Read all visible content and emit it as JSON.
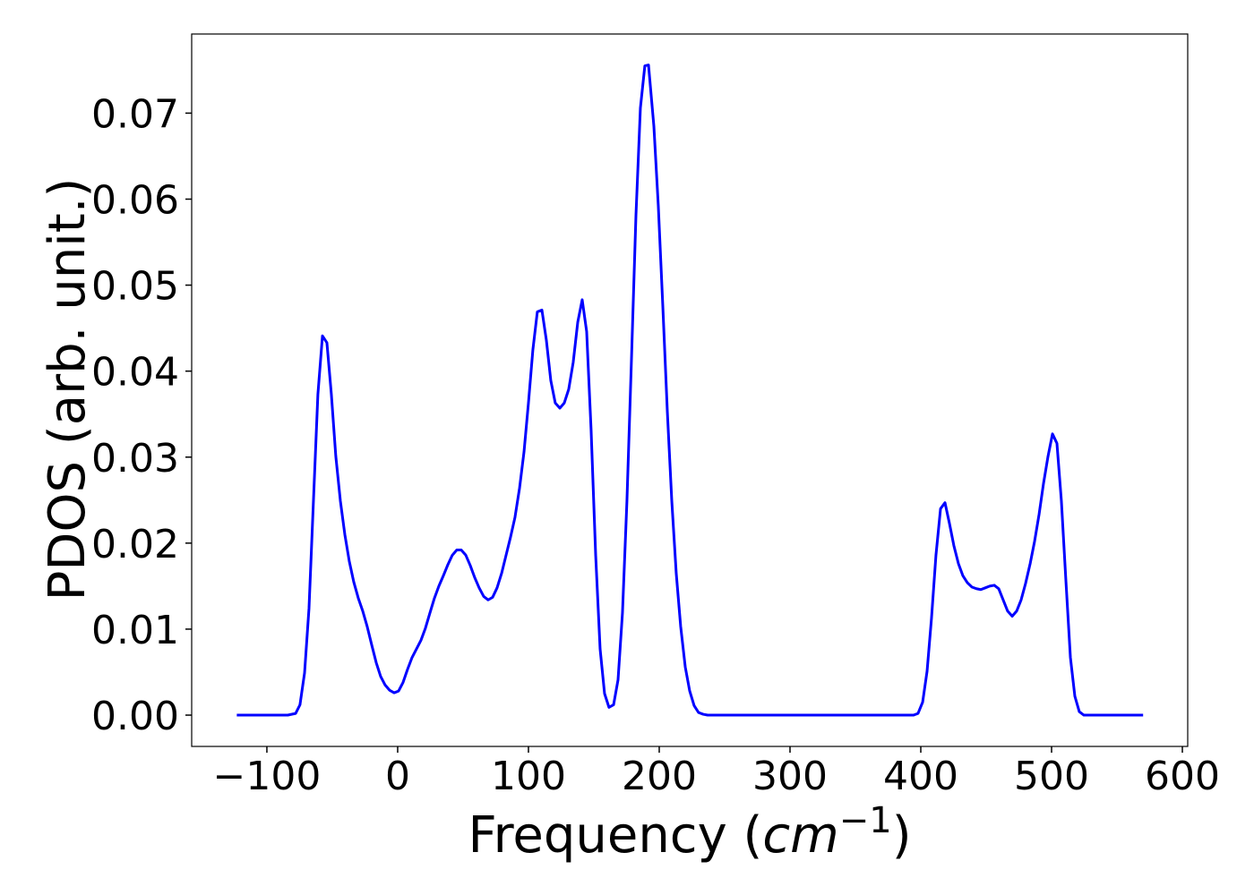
{
  "chart_data": {
    "type": "line",
    "x_label": [
      "Frequency (",
      "cm",
      "−1",
      ")"
    ],
    "y_label": "PDOS (arb. unit.)",
    "x": [
      -123,
      -84,
      -78,
      -74.7,
      -71.2,
      -67.8,
      -64.4,
      -61,
      -57.5,
      -54.1,
      -50.7,
      -47.3,
      -43.8,
      -40.4,
      -37,
      -33.6,
      -30.1,
      -26.7,
      -23.3,
      -19.9,
      -16.4,
      -13,
      -9.6,
      -6.2,
      -2.7,
      0.7,
      4.1,
      7.5,
      11,
      14.4,
      17.8,
      21.2,
      24.7,
      28.1,
      31.5,
      34.9,
      38.4,
      41.8,
      45.2,
      48.6,
      52.1,
      55.5,
      58.9,
      62.3,
      65.8,
      69.2,
      72.6,
      76,
      79.5,
      82.9,
      86.3,
      89.7,
      93.2,
      96.6,
      100,
      103.4,
      106.8,
      110.3,
      113.7,
      117.1,
      120.5,
      124,
      127.4,
      130.8,
      134.2,
      137.7,
      141.1,
      144.5,
      147.9,
      151.4,
      154.8,
      158.2,
      161.6,
      165.1,
      168.5,
      171.9,
      175.3,
      178.8,
      182.2,
      185.6,
      189,
      191.8,
      195.9,
      199.3,
      202.7,
      206.2,
      209.6,
      213,
      216.4,
      219.9,
      223.3,
      226.7,
      230.1,
      233.6,
      237,
      394.5,
      397.9,
      401.4,
      404.8,
      408.2,
      411.6,
      415.1,
      418.5,
      421.9,
      425.3,
      428.8,
      432.2,
      435.6,
      439,
      442.5,
      445.9,
      449.3,
      452.7,
      456.2,
      459.6,
      463,
      466.4,
      469.9,
      473.3,
      476.7,
      480.1,
      483.6,
      487,
      490.4,
      493.8,
      497.3,
      500.7,
      504.1,
      507.5,
      511,
      514.4,
      517.8,
      521.2,
      524.7,
      570
    ],
    "series": [
      {
        "color": "#0000ff",
        "values": [
          0,
          0,
          0.0002,
          0.0012,
          0.0049,
          0.0124,
          0.0249,
          0.0373,
          0.0441,
          0.0433,
          0.0373,
          0.0301,
          0.0249,
          0.021,
          0.0179,
          0.0155,
          0.0136,
          0.0121,
          0.0103,
          0.0082,
          0.0061,
          0.0045,
          0.0035,
          0.0029,
          0.0026,
          0.0028,
          0.0038,
          0.0053,
          0.0067,
          0.0077,
          0.0087,
          0.0101,
          0.0119,
          0.0136,
          0.015,
          0.0162,
          0.0175,
          0.0186,
          0.0192,
          0.0192,
          0.0186,
          0.0174,
          0.016,
          0.0148,
          0.0138,
          0.0134,
          0.0137,
          0.0148,
          0.0165,
          0.0186,
          0.0207,
          0.023,
          0.0264,
          0.0306,
          0.0363,
          0.0425,
          0.0469,
          0.0471,
          0.0436,
          0.0389,
          0.0363,
          0.0357,
          0.0363,
          0.0379,
          0.041,
          0.0457,
          0.0483,
          0.0446,
          0.0332,
          0.0186,
          0.0077,
          0.0025,
          0.0009,
          0.0012,
          0.0041,
          0.0119,
          0.0249,
          0.0415,
          0.0581,
          0.0706,
          0.0755,
          0.0756,
          0.0685,
          0.0592,
          0.0477,
          0.0353,
          0.0249,
          0.0165,
          0.0103,
          0.0056,
          0.0028,
          0.0011,
          0.0003,
          0.0001,
          0,
          0,
          0.0002,
          0.0015,
          0.0051,
          0.0113,
          0.0186,
          0.024,
          0.0247,
          0.0223,
          0.0197,
          0.0176,
          0.0162,
          0.0154,
          0.0149,
          0.0147,
          0.0146,
          0.0148,
          0.015,
          0.0151,
          0.0147,
          0.0134,
          0.0121,
          0.0115,
          0.0121,
          0.0134,
          0.0153,
          0.0176,
          0.0202,
          0.0233,
          0.0269,
          0.0301,
          0.0327,
          0.0316,
          0.0249,
          0.0155,
          0.0067,
          0.0022,
          0.0004,
          0,
          0
        ]
      }
    ],
    "xlim": [
      -157.5,
      604.1
    ],
    "ylim": [
      -0.00364,
      0.0792
    ],
    "xticks": [
      {
        "value": -100,
        "label": "−100"
      },
      0,
      100,
      200,
      300,
      400,
      500,
      600
    ],
    "yticks": [
      {
        "value": 0,
        "label": "0.00"
      },
      {
        "value": 0.01,
        "label": "0.01"
      },
      {
        "value": 0.02,
        "label": "0.02"
      },
      {
        "value": 0.03,
        "label": "0.03"
      },
      {
        "value": 0.04,
        "label": "0.04"
      },
      {
        "value": 0.05,
        "label": "0.05"
      },
      {
        "value": 0.06,
        "label": "0.06"
      },
      {
        "value": 0.07,
        "label": "0.07"
      }
    ],
    "grid": false
  }
}
